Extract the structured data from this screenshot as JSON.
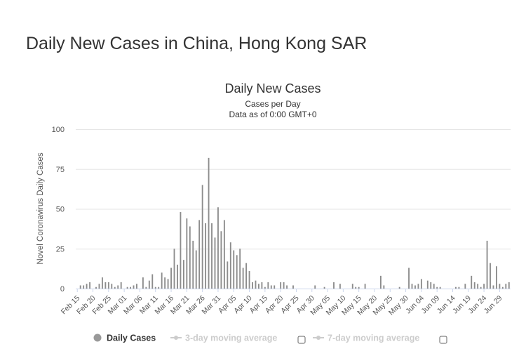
{
  "page": {
    "title": "Daily New Cases in China, Hong Kong SAR"
  },
  "chart_data": {
    "type": "bar",
    "title": "Daily New Cases",
    "subtitle_1": "Cases per Day",
    "subtitle_2": "Data as of 0:00 GMT+0",
    "ylabel": "Novel Coronavirus Daily Cases",
    "xlabel": "",
    "ylim": [
      0,
      100
    ],
    "yticks": [
      0,
      25,
      50,
      75,
      100
    ],
    "x_tick_labels": [
      "Feb 15",
      "Feb 20",
      "Feb 25",
      "Mar 01",
      "Mar 06",
      "Mar 11",
      "Mar 16",
      "Mar 21",
      "Mar 26",
      "Mar 31",
      "Apr 05",
      "Apr 10",
      "Apr 15",
      "Apr 20",
      "Apr 25",
      "Apr 30",
      "May 05",
      "May 10",
      "May 15",
      "May 20",
      "May 25",
      "May 30",
      "Jun 04",
      "Jun 09",
      "Jun 14",
      "Jun 19",
      "Jun 24",
      "Jun 29"
    ],
    "start_date": "Feb 15",
    "series": [
      {
        "name": "Daily Cases",
        "color": "#8c8c8c",
        "values": [
          0,
          2,
          2,
          3,
          4,
          0,
          1,
          3,
          7,
          4,
          4,
          3,
          1,
          2,
          4,
          0,
          1,
          1,
          2,
          3,
          0,
          7,
          1,
          5,
          9,
          1,
          1,
          10,
          7,
          6,
          13,
          25,
          15,
          48,
          18,
          44,
          39,
          30,
          24,
          43,
          65,
          41,
          82,
          41,
          32,
          51,
          36,
          43,
          17,
          29,
          24,
          21,
          25,
          13,
          16,
          11,
          4,
          5,
          3,
          4,
          1,
          4,
          2,
          2,
          0,
          4,
          4,
          2,
          0,
          2,
          0,
          0,
          0,
          0,
          0,
          0,
          2,
          0,
          0,
          1,
          0,
          0,
          4,
          0,
          3,
          0,
          0,
          0,
          3,
          1,
          1,
          0,
          3,
          0,
          0,
          0,
          0,
          8,
          2,
          0,
          0,
          0,
          0,
          1,
          0,
          0,
          13,
          3,
          2,
          3,
          6,
          0,
          5,
          4,
          3,
          1,
          1,
          0,
          0,
          0,
          0,
          1,
          1,
          0,
          3,
          0,
          8,
          4,
          3,
          1,
          3,
          30,
          16,
          2,
          14,
          3,
          1,
          3,
          4
        ]
      }
    ],
    "legend": [
      {
        "label": "Daily Cases",
        "active": true,
        "color": "#999999"
      },
      {
        "label": "3-day moving average",
        "active": false,
        "color": "#cccccc"
      },
      {
        "label": "7-day moving average",
        "active": false,
        "color": "#cccccc"
      }
    ]
  }
}
